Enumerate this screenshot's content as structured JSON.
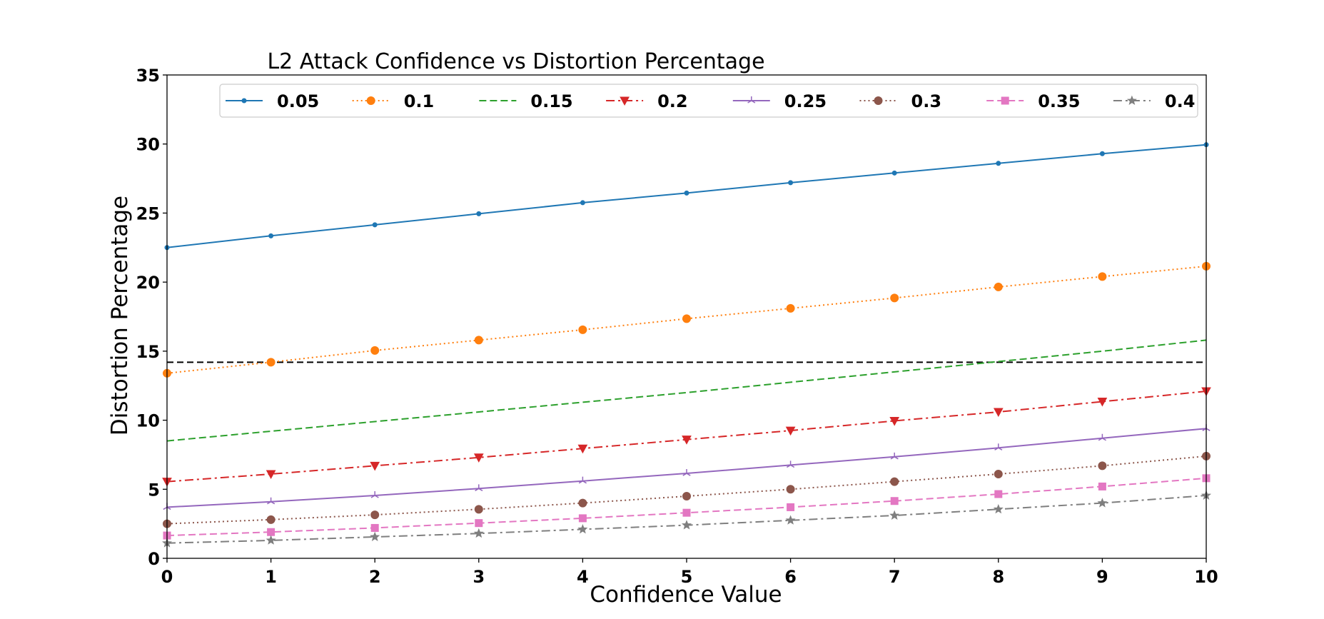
{
  "chart_data": {
    "type": "line",
    "title": "L2 Attack Confidence vs Distortion Percentage",
    "xlabel": "Confidence Value",
    "ylabel": "Distortion Percentage",
    "xlim": [
      0,
      10
    ],
    "ylim": [
      0,
      35
    ],
    "x": [
      0,
      1,
      2,
      3,
      4,
      5,
      6,
      7,
      8,
      9,
      10
    ],
    "xticks": [
      "0",
      "1",
      "2",
      "3",
      "4",
      "5",
      "6",
      "7",
      "8",
      "9",
      "10"
    ],
    "yticks": [
      "0",
      "5",
      "10",
      "15",
      "20",
      "25",
      "30",
      "35"
    ],
    "legend_position": "top",
    "reference_line": {
      "y": 14.2,
      "color": "#000000",
      "style": "dashed"
    },
    "series": [
      {
        "name": "0.05",
        "color": "#1f77b4",
        "dash": "",
        "marker": "point",
        "values": [
          22.5,
          23.35,
          24.15,
          24.95,
          25.75,
          26.45,
          27.2,
          27.9,
          28.6,
          29.3,
          29.95
        ]
      },
      {
        "name": "0.1",
        "color": "#ff7f0e",
        "dash": "dot",
        "marker": "circle",
        "values": [
          13.4,
          14.2,
          15.05,
          15.8,
          16.55,
          17.35,
          18.1,
          18.85,
          19.65,
          20.4,
          21.15
        ]
      },
      {
        "name": "0.15",
        "color": "#2ca02c",
        "dash": "dashed",
        "marker": "none",
        "values": [
          8.5,
          9.2,
          9.9,
          10.6,
          11.3,
          12.0,
          12.75,
          13.5,
          14.25,
          15.0,
          15.8
        ]
      },
      {
        "name": "0.2",
        "color": "#d62728",
        "dash": "dashdot",
        "marker": "triangle-down",
        "values": [
          5.55,
          6.1,
          6.7,
          7.3,
          7.95,
          8.6,
          9.25,
          9.95,
          10.6,
          11.35,
          12.1
        ]
      },
      {
        "name": "0.25",
        "color": "#9467bd",
        "dash": "",
        "marker": "tri",
        "values": [
          3.7,
          4.1,
          4.55,
          5.05,
          5.6,
          6.15,
          6.75,
          7.35,
          8.0,
          8.7,
          9.4
        ]
      },
      {
        "name": "0.3",
        "color": "#8c564b",
        "dash": "dot",
        "marker": "circle",
        "values": [
          2.5,
          2.8,
          3.15,
          3.55,
          4.0,
          4.5,
          5.0,
          5.55,
          6.1,
          6.7,
          7.4
        ]
      },
      {
        "name": "0.35",
        "color": "#e377c2",
        "dash": "dashed",
        "marker": "square",
        "values": [
          1.65,
          1.9,
          2.2,
          2.55,
          2.9,
          3.3,
          3.7,
          4.15,
          4.65,
          5.2,
          5.8
        ]
      },
      {
        "name": "0.4",
        "color": "#7f7f7f",
        "dash": "dashdot",
        "marker": "star",
        "values": [
          1.1,
          1.3,
          1.55,
          1.8,
          2.1,
          2.4,
          2.75,
          3.1,
          3.55,
          4.0,
          4.55
        ]
      }
    ]
  }
}
